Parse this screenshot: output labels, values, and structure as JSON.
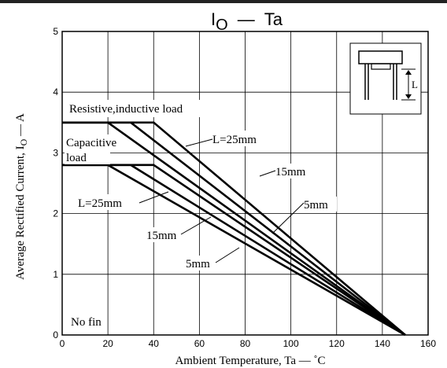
{
  "chart_data": {
    "type": "line",
    "title": {
      "main": "I",
      "sub": "O",
      "sep": "—",
      "rest": "Ta"
    },
    "xlabel": "Ambient Temperature, Ta  —  ˚C",
    "ylabel": {
      "pre": "Average Rectified Current, I",
      "sub": "O",
      "post": "  —  A"
    },
    "xlim": [
      0,
      160
    ],
    "ylim": [
      0,
      5
    ],
    "x_ticks": [
      "0",
      "20",
      "40",
      "60",
      "80",
      "100",
      "120",
      "140",
      "160"
    ],
    "y_ticks": [
      "0",
      "1",
      "2",
      "3",
      "4",
      "5"
    ],
    "grid": true,
    "series": [
      {
        "group": "resistive",
        "points": [
          [
            0,
            3.5
          ],
          [
            40,
            3.5
          ],
          [
            150,
            0
          ]
        ]
      },
      {
        "group": "resistive",
        "points": [
          [
            0,
            3.5
          ],
          [
            30,
            3.5
          ],
          [
            150,
            0
          ]
        ]
      },
      {
        "group": "resistive",
        "points": [
          [
            0,
            3.5
          ],
          [
            20,
            3.5
          ],
          [
            150,
            0
          ]
        ]
      },
      {
        "group": "capacitive",
        "points": [
          [
            0,
            2.8
          ],
          [
            40,
            2.8
          ],
          [
            150,
            0
          ]
        ]
      },
      {
        "group": "capacitive",
        "points": [
          [
            0,
            2.8
          ],
          [
            30,
            2.8
          ],
          [
            150,
            0
          ]
        ]
      },
      {
        "group": "capacitive",
        "points": [
          [
            0,
            2.8
          ],
          [
            20,
            2.8
          ],
          [
            150,
            0
          ]
        ]
      }
    ],
    "annotations": {
      "resistive_label": "Resistive,inductive load",
      "capacitive_line1": "Capacitive",
      "capacitive_line2": "load",
      "res_25": "L=25mm",
      "res_15": "15mm",
      "res_5": "5mm",
      "cap_25": "L=25mm",
      "cap_15": "15mm",
      "cap_5": "5mm",
      "no_fin": "No fin",
      "inset_L": "L"
    }
  }
}
